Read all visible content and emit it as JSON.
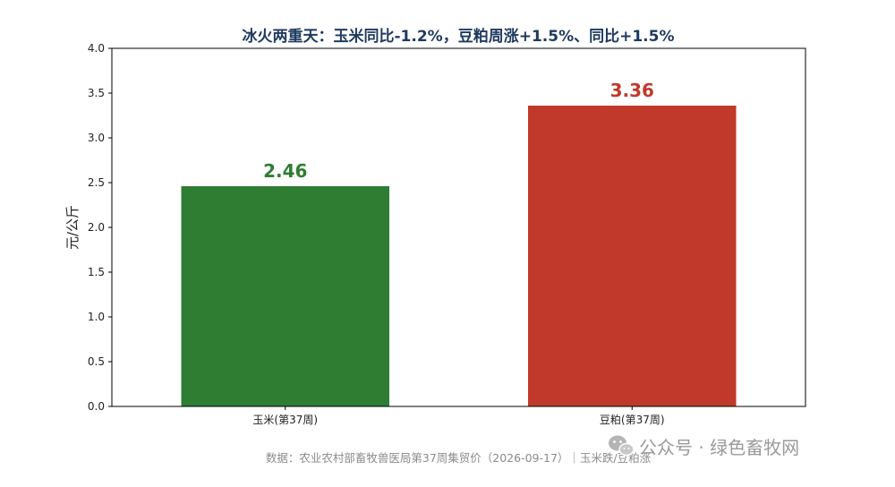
{
  "chart_data": {
    "type": "bar",
    "title": "冰火两重天：玉米同比-1.2%，豆粕周涨+1.5%、同比+1.5%",
    "ylabel": "元/公斤",
    "xlabel": "",
    "categories": [
      "玉米(第37周)",
      "豆粕(第37周)"
    ],
    "values": [
      2.46,
      3.36
    ],
    "value_labels": [
      "2.46",
      "3.36"
    ],
    "colors": [
      "#2e7d32",
      "#c0392b"
    ],
    "ylim": [
      0,
      4.0
    ],
    "yticks": [
      0.0,
      0.5,
      1.0,
      1.5,
      2.0,
      2.5,
      3.0,
      3.5,
      4.0
    ],
    "ytick_labels": [
      "0.0",
      "0.5",
      "1.0",
      "1.5",
      "2.0",
      "2.5",
      "3.0",
      "3.5",
      "4.0"
    ],
    "grid": false,
    "legend": "none"
  },
  "footer": {
    "source": "数据：农业农村部畜牧兽医局第37周集贸价（2026-09-17）｜玉米跌/豆粕涨"
  },
  "watermark": {
    "text": "公众号 · 绿色畜牧网",
    "icon": "wechat-icon"
  }
}
